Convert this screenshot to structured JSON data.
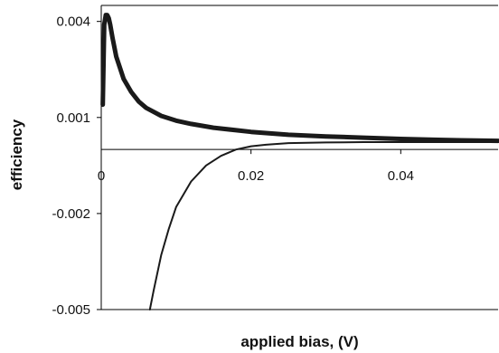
{
  "chart_data": {
    "type": "line",
    "title": "",
    "xlabel": "applied bias, (V)",
    "ylabel": "efficiency",
    "xlim": [
      0,
      0.053
    ],
    "ylim": [
      -0.005,
      0.0045
    ],
    "xticks": [
      0,
      0.02,
      0.04
    ],
    "xtick_labels": [
      "0",
      "0.02",
      "0.04"
    ],
    "yticks": [
      0.004,
      0.001,
      -0.002,
      -0.005
    ],
    "ytick_labels": [
      "0.004",
      "0.001",
      "-0.002",
      "-0.005"
    ],
    "grid": false,
    "legend": "none",
    "series": [
      {
        "line_width": "thick",
        "color": "#1a1a1a",
        "x": [
          0.0002,
          0.0004,
          0.0006,
          0.0008,
          0.001,
          0.0012,
          0.0015,
          0.002,
          0.003,
          0.004,
          0.005,
          0.006,
          0.008,
          0.01,
          0.012,
          0.015,
          0.02,
          0.025,
          0.03,
          0.035,
          0.04,
          0.045,
          0.05,
          0.053
        ],
        "y": [
          0.0014,
          0.0039,
          0.0042,
          0.0042,
          0.0041,
          0.0039,
          0.0035,
          0.0029,
          0.0022,
          0.0018,
          0.0015,
          0.0013,
          0.00105,
          0.0009,
          0.0008,
          0.00068,
          0.00055,
          0.00046,
          0.00041,
          0.00037,
          0.00033,
          0.0003,
          0.00028,
          0.00027
        ]
      },
      {
        "line_width": "thin",
        "color": "#1a1a1a",
        "x": [
          0.0065,
          0.007,
          0.008,
          0.009,
          0.01,
          0.012,
          0.014,
          0.016,
          0.018,
          0.02,
          0.022,
          0.025,
          0.03,
          0.035,
          0.04,
          0.045,
          0.05,
          0.053
        ],
        "y": [
          -0.005,
          -0.0044,
          -0.0033,
          -0.0025,
          -0.0018,
          -0.001,
          -0.0005,
          -0.0002,
          0.0,
          0.0001,
          0.00015,
          0.0002,
          0.00022,
          0.00023,
          0.00023,
          0.00023,
          0.00023,
          0.00023
        ]
      }
    ]
  }
}
